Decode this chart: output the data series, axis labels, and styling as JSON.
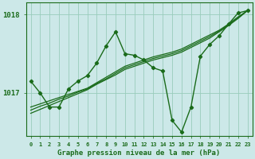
{
  "x": [
    0,
    1,
    2,
    3,
    4,
    5,
    6,
    7,
    8,
    9,
    10,
    11,
    12,
    13,
    14,
    15,
    16,
    17,
    18,
    19,
    20,
    21,
    22,
    23
  ],
  "y_main": [
    1017.15,
    1017.0,
    1016.82,
    1016.82,
    1017.05,
    1017.15,
    1017.22,
    1017.38,
    1017.6,
    1017.78,
    1017.5,
    1017.48,
    1017.42,
    1017.32,
    1017.28,
    1016.65,
    1016.5,
    1016.82,
    1017.47,
    1017.62,
    1017.73,
    1017.88,
    1018.02,
    1018.05
  ],
  "y_linear1": [
    1016.82,
    1016.86,
    1016.9,
    1016.94,
    1016.98,
    1017.02,
    1017.06,
    1017.13,
    1017.2,
    1017.27,
    1017.34,
    1017.38,
    1017.42,
    1017.46,
    1017.49,
    1017.52,
    1017.56,
    1017.62,
    1017.68,
    1017.74,
    1017.8,
    1017.88,
    1017.97,
    1018.05
  ],
  "y_linear2": [
    1016.78,
    1016.83,
    1016.87,
    1016.92,
    1016.96,
    1017.01,
    1017.05,
    1017.12,
    1017.18,
    1017.25,
    1017.32,
    1017.36,
    1017.4,
    1017.44,
    1017.47,
    1017.5,
    1017.54,
    1017.6,
    1017.66,
    1017.72,
    1017.79,
    1017.87,
    1017.96,
    1018.05
  ],
  "y_linear3": [
    1016.74,
    1016.79,
    1016.84,
    1016.89,
    1016.94,
    1016.99,
    1017.04,
    1017.11,
    1017.17,
    1017.23,
    1017.3,
    1017.34,
    1017.38,
    1017.42,
    1017.45,
    1017.48,
    1017.52,
    1017.58,
    1017.64,
    1017.7,
    1017.78,
    1017.86,
    1017.95,
    1018.05
  ],
  "bg_color": "#cce8e8",
  "line_color": "#1a6b1a",
  "grid_color": "#99ccbb",
  "xlabel_label": "Graphe pression niveau de la mer (hPa)",
  "ylim": [
    1016.45,
    1018.15
  ],
  "yticks": [
    1017.0,
    1018.0
  ],
  "xticks": [
    0,
    1,
    2,
    3,
    4,
    5,
    6,
    7,
    8,
    9,
    10,
    11,
    12,
    13,
    14,
    15,
    16,
    17,
    18,
    19,
    20,
    21,
    22,
    23
  ]
}
